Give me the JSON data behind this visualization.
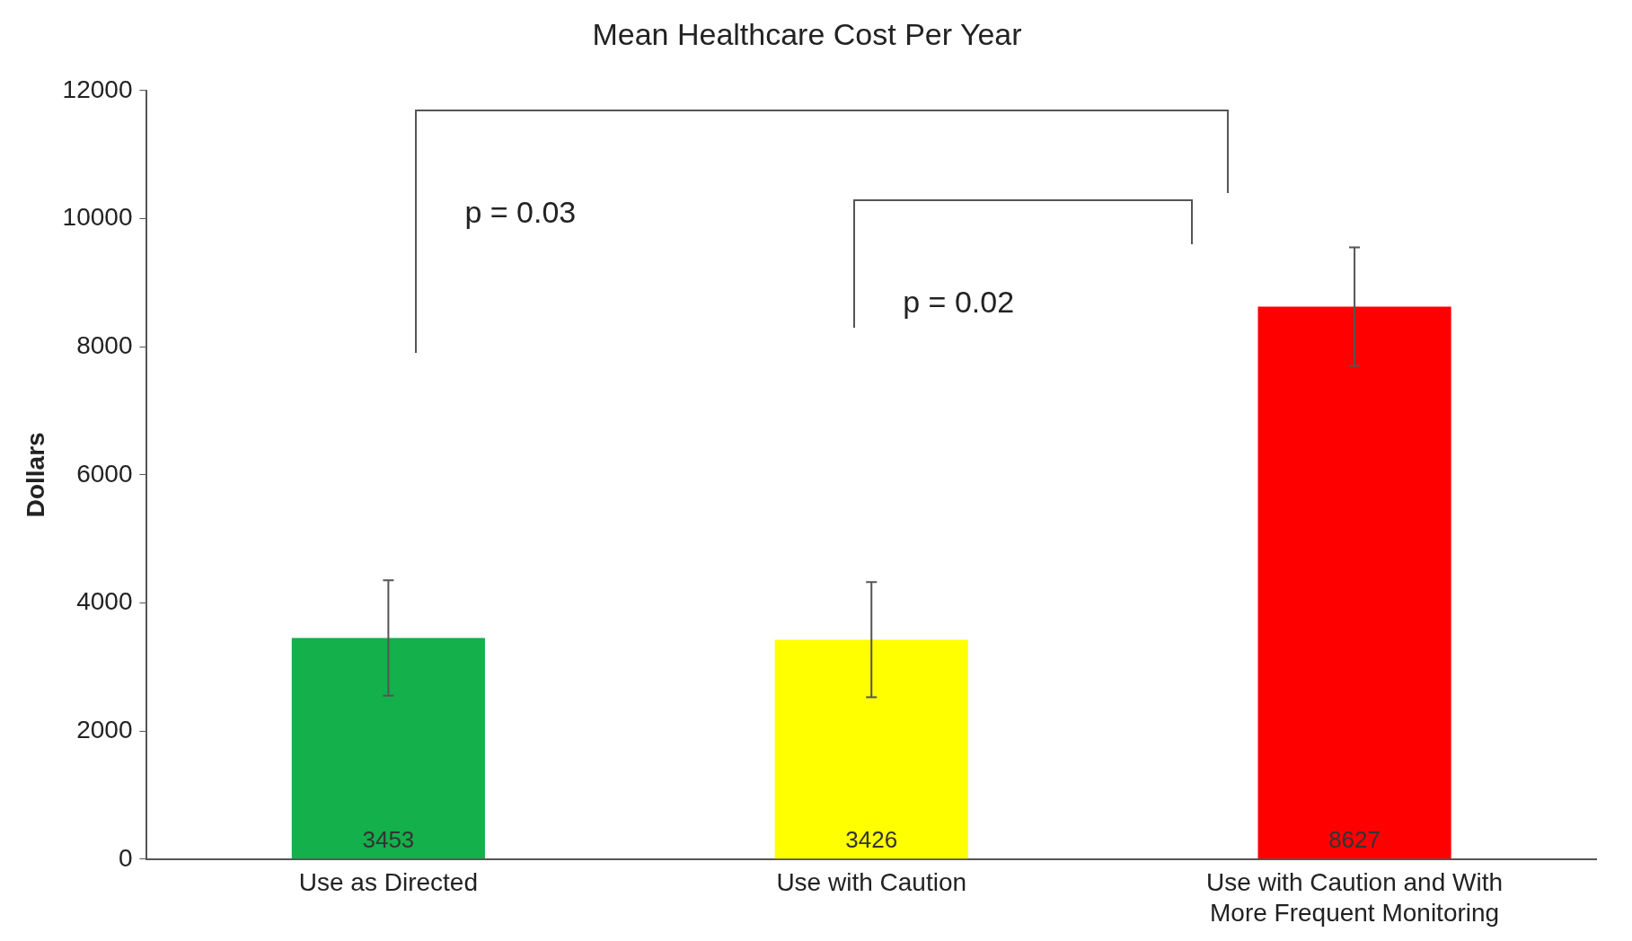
{
  "chart_data": {
    "type": "bar",
    "title": "Mean Healthcare Cost Per Year",
    "ylabel": "Dollars",
    "categories": [
      "Use as Directed",
      "Use with Caution",
      "Use with Caution and With More Frequent Monitoring"
    ],
    "values": [
      3453,
      3426,
      8627
    ],
    "colors": [
      "#13b04b",
      "#ffff00",
      "#ff0000"
    ],
    "errors": [
      900,
      900,
      925
    ],
    "ylim": [
      0,
      12000
    ],
    "yticks": [
      0,
      2000,
      4000,
      6000,
      8000,
      10000,
      12000
    ],
    "grid": false,
    "legend": false,
    "data_labels": true,
    "annotations": [
      "p = 0.03",
      "p = 0.02"
    ]
  }
}
